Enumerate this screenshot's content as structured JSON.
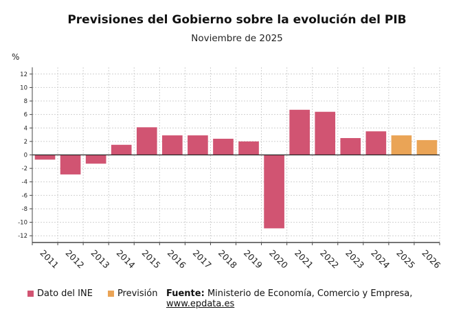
{
  "header": {
    "title": "Previsiones del Gobierno sobre la evolución del PIB",
    "subtitle": "Noviembre de 2025",
    "unit": "%"
  },
  "legend": {
    "items": [
      {
        "label": "Dato del INE",
        "color": "#d15472"
      },
      {
        "label": "Previsión",
        "color": "#eaa456"
      }
    ]
  },
  "source": {
    "prefix": "Fuente:",
    "text": "Ministerio de Economía, Comercio y Empresa,",
    "link": "www.epdata.es"
  },
  "chart_data": {
    "type": "bar",
    "categories": [
      "2011",
      "2012",
      "2013",
      "2014",
      "2015",
      "2016",
      "2017",
      "2018",
      "2019",
      "2020",
      "2021",
      "2022",
      "2023",
      "2024",
      "2025",
      "2026"
    ],
    "series": [
      {
        "name": "Dato del INE",
        "color": "#d15472",
        "values": [
          -0.7,
          -2.9,
          -1.3,
          1.5,
          4.1,
          2.9,
          2.9,
          2.4,
          2.0,
          -10.9,
          6.7,
          6.4,
          2.5,
          3.5,
          null,
          null
        ]
      },
      {
        "name": "Previsión",
        "color": "#eaa456",
        "values": [
          null,
          null,
          null,
          null,
          null,
          null,
          null,
          null,
          null,
          null,
          null,
          null,
          null,
          null,
          2.9,
          2.2
        ]
      }
    ],
    "ylim": [
      -13,
      13
    ],
    "yticks": [
      12,
      10,
      8,
      6,
      4,
      2,
      0,
      -2,
      -4,
      -6,
      -8,
      -10,
      -12
    ],
    "ylabel": "%",
    "grid": true,
    "legend_position": "bottom-left"
  }
}
